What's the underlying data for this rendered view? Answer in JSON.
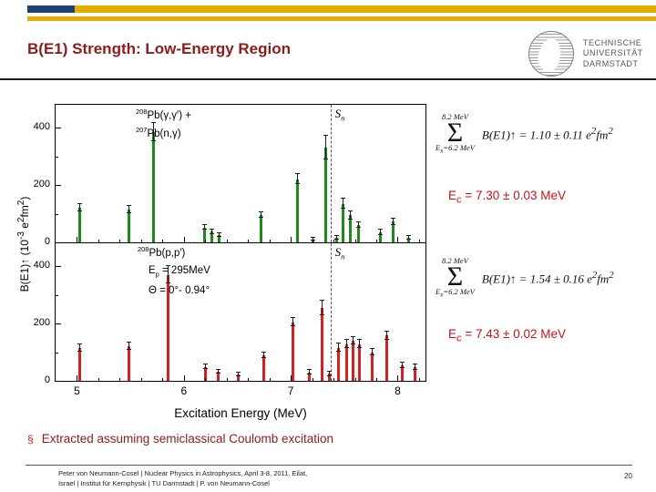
{
  "slide": {
    "title": "B(E1) Strength: Low-Energy Region",
    "logo": {
      "lines": [
        "TECHNISCHE",
        "UNIVERSITÄT",
        "DARMSTADT"
      ]
    },
    "bullet": {
      "marker": "§",
      "text": "Extracted assuming semiclassical Coulomb excitation"
    },
    "footer": {
      "line1": "Peter von Neumann-Cosel | Nuclear Physics in Astrophysics, April 3-8, 2011, Eilat,",
      "line2": "Israel | Institut für Kernphysik | TU Darmstadt | P. von Neumann-Cosel",
      "page": "20"
    }
  },
  "annotations": {
    "formula1": {
      "upper": "8.2 MeV",
      "sigma": "Σ",
      "lower": "E_{x}=6.2 MeV",
      "body": "B(E1)↑ = 1.10 ± 0.11 e^{2}fm^{2}"
    },
    "ec1": "E_{c} = 7.30 ± 0.03 MeV",
    "formula2": {
      "upper": "8.2 MeV",
      "sigma": "Σ",
      "lower": "E_{x}=6.2 MeV",
      "body": "B(E1)↑ = 1.54 ± 0.16 e^{2}fm^{2}"
    },
    "ec2": "E_{c} = 7.43 ± 0.02 MeV"
  },
  "chart_data": {
    "type": "bar",
    "title": "",
    "xlabel": "Excitation Energy (MeV)",
    "ylabel": "B(E1)↑ (10^{-3} e^{2}fm^{2})",
    "xlim": [
      4.8,
      8.26
    ],
    "xticks": [
      5,
      6,
      7,
      8
    ],
    "yticks": [
      0,
      200,
      400
    ],
    "sn_line_x": 7.37,
    "panels": [
      {
        "name": "208Pb(γ,γ′) + 207Pb(n,γ)",
        "color": "#1e8a1e",
        "sn_label": "S_{n}",
        "ylim": [
          0,
          480
        ],
        "labels": [
          "^{208}Pb(γ,γ′) +",
          "^{207}Pb(n,γ)"
        ],
        "points": [
          [
            5.03,
            120,
            12
          ],
          [
            5.49,
            115,
            12
          ],
          [
            5.72,
            385,
            32
          ],
          [
            6.19,
            52,
            8
          ],
          [
            6.26,
            38,
            8
          ],
          [
            6.33,
            25,
            6
          ],
          [
            6.72,
            95,
            10
          ],
          [
            7.06,
            220,
            18
          ],
          [
            7.21,
            10,
            5
          ],
          [
            7.33,
            330,
            42
          ],
          [
            7.43,
            15,
            6
          ],
          [
            7.49,
            135,
            18
          ],
          [
            7.56,
            95,
            14
          ],
          [
            7.63,
            60,
            10
          ],
          [
            7.84,
            35,
            8
          ],
          [
            7.96,
            72,
            12
          ],
          [
            8.1,
            15,
            6
          ]
        ]
      },
      {
        "name": "208Pb(p,p′)",
        "color": "#d42020",
        "sn_label": "S_{n}",
        "ylim": [
          0,
          480
        ],
        "labels": [
          "^{208}Pb(p,p′)",
          "E_{p} = 295MeV",
          "Θ = 0°- 0.94°"
        ],
        "points": [
          [
            5.03,
            115,
            12
          ],
          [
            5.49,
            120,
            12
          ],
          [
            5.85,
            370,
            30
          ],
          [
            6.2,
            48,
            8
          ],
          [
            6.32,
            32,
            6
          ],
          [
            6.51,
            22,
            6
          ],
          [
            6.75,
            88,
            10
          ],
          [
            7.02,
            205,
            15
          ],
          [
            7.17,
            30,
            8
          ],
          [
            7.29,
            255,
            25
          ],
          [
            7.36,
            25,
            8
          ],
          [
            7.45,
            115,
            14
          ],
          [
            7.52,
            128,
            14
          ],
          [
            7.58,
            140,
            14
          ],
          [
            7.64,
            128,
            14
          ],
          [
            7.76,
            100,
            12
          ],
          [
            7.9,
            158,
            15
          ],
          [
            8.04,
            55,
            10
          ],
          [
            8.16,
            48,
            10
          ]
        ]
      }
    ]
  }
}
